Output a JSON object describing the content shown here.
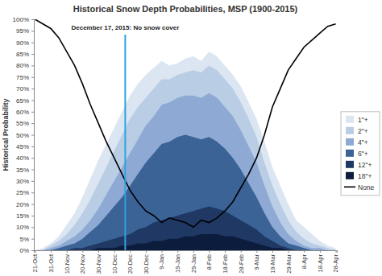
{
  "chart_data": {
    "type": "area",
    "title": "Historical Snow Depth Probabilities, MSP (1900-2015)",
    "y_label": "Historical Probability",
    "categories": [
      "21-Oct",
      null,
      "31-Oct",
      null,
      "10-Nov",
      null,
      "20-Nov",
      null,
      "30-Nov",
      null,
      "10-Dec",
      null,
      "20-Dec",
      null,
      "30-Dec",
      null,
      "9-Jan",
      null,
      "19-Jan",
      null,
      "29-Jan",
      null,
      "8-Feb",
      null,
      "18-Feb",
      null,
      "28-Feb",
      null,
      "9-Mar",
      null,
      "19-Mar",
      null,
      "29-Mar",
      null,
      "8-Apr",
      null,
      "18-Apr",
      null,
      "28-Apr"
    ],
    "series": [
      {
        "name": "1\"+",
        "color": "#dce6f2",
        "values": [
          0,
          1,
          3,
          6,
          11,
          16,
          23,
          31,
          39,
          46,
          53,
          60,
          67,
          72,
          76,
          79,
          82,
          80,
          81,
          83,
          84,
          82,
          86,
          84,
          80,
          76,
          71,
          64,
          57,
          47,
          36,
          28,
          20,
          13,
          10,
          7,
          4,
          2,
          1
        ]
      },
      {
        "name": "2\"+",
        "color": "#b9cde5",
        "values": [
          0,
          0,
          2,
          4,
          7,
          11,
          16,
          22,
          29,
          36,
          43,
          50,
          57,
          62,
          66,
          70,
          74,
          74,
          76,
          77,
          78,
          77,
          80,
          78,
          74,
          70,
          64,
          57,
          49,
          38,
          28,
          20,
          13,
          8,
          5,
          3,
          2,
          1,
          0
        ]
      },
      {
        "name": "4\"+",
        "color": "#8eaad4",
        "values": [
          0,
          0,
          1,
          2,
          4,
          6,
          9,
          13,
          18,
          24,
          30,
          36,
          42,
          48,
          54,
          58,
          63,
          64,
          66,
          67,
          67,
          66,
          68,
          66,
          62,
          58,
          52,
          45,
          38,
          28,
          19,
          12,
          7,
          4,
          2,
          1,
          1,
          0,
          0
        ]
      },
      {
        "name": "6\"+",
        "color": "#3b6396",
        "values": [
          0,
          0,
          0,
          1,
          2,
          3,
          5,
          8,
          11,
          15,
          19,
          23,
          28,
          33,
          38,
          42,
          46,
          47,
          49,
          50,
          49,
          48,
          49,
          47,
          44,
          40,
          35,
          29,
          23,
          16,
          10,
          6,
          3,
          2,
          1,
          0,
          0,
          0,
          0
        ]
      },
      {
        "name": "12\"+",
        "color": "#1f3864",
        "values": [
          0,
          0,
          0,
          0,
          0,
          1,
          1,
          2,
          3,
          4,
          5,
          6,
          7,
          9,
          10,
          12,
          13,
          14,
          15,
          16,
          17,
          18,
          19,
          18,
          17,
          15,
          13,
          11,
          9,
          6,
          4,
          2,
          1,
          0,
          0,
          0,
          0,
          0,
          0
        ]
      },
      {
        "name": "18\"+",
        "color": "#0c1c3c",
        "values": [
          0,
          0,
          0,
          0,
          0,
          0,
          0,
          0,
          1,
          1,
          1,
          2,
          2,
          3,
          3,
          4,
          4,
          5,
          5,
          6,
          6,
          7,
          7,
          7,
          6,
          6,
          5,
          4,
          3,
          2,
          1,
          1,
          0,
          0,
          0,
          0,
          0,
          0,
          0
        ]
      },
      {
        "name": "None",
        "color": "#000000",
        "type": "line",
        "values": [
          100,
          98,
          96,
          92,
          86,
          80,
          72,
          63,
          55,
          47,
          40,
          33,
          26,
          21,
          17,
          15,
          12,
          14,
          13,
          12,
          10,
          13,
          12,
          14,
          17,
          21,
          27,
          33,
          40,
          50,
          62,
          70,
          78,
          83,
          88,
          91,
          94,
          97,
          98
        ]
      }
    ],
    "ylim": [
      0,
      100
    ],
    "yticks": [
      {
        "value": 0,
        "label": "0%"
      },
      {
        "value": 5,
        "label": "5%"
      },
      {
        "value": 10,
        "label": "10%"
      },
      {
        "value": 15,
        "label": "15%"
      },
      {
        "value": 20,
        "label": "20%"
      },
      {
        "value": 25,
        "label": "25%"
      },
      {
        "value": 30,
        "label": "30%"
      },
      {
        "value": 35,
        "label": "35%"
      },
      {
        "value": 40,
        "label": "40%"
      },
      {
        "value": 45,
        "label": "45%"
      },
      {
        "value": 50,
        "label": "50%"
      },
      {
        "value": 55,
        "label": "55%"
      },
      {
        "value": 60,
        "label": "60%"
      },
      {
        "value": 65,
        "label": "65%"
      },
      {
        "value": 70,
        "label": "70%"
      },
      {
        "value": 75,
        "label": "75%"
      },
      {
        "value": 80,
        "label": "80%"
      },
      {
        "value": 85,
        "label": "85%"
      },
      {
        "value": 90,
        "label": "90%"
      },
      {
        "value": 95,
        "label": "95%"
      },
      {
        "value": 100,
        "label": "100%"
      }
    ],
    "legend": "right",
    "annotations": [
      {
        "text": "December 17, 2015: No snow cover",
        "x": 11.4
      }
    ]
  }
}
